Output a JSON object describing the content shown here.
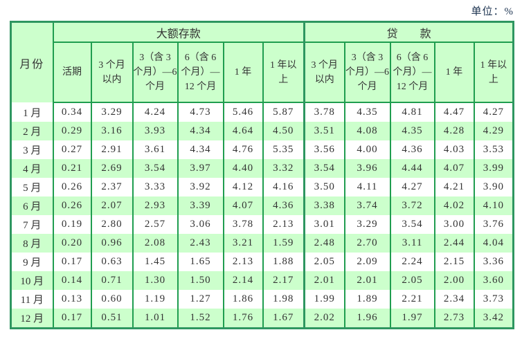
{
  "unit_label": "单位：%",
  "colors": {
    "row_green": "#ccffcc",
    "row_white": "#ffffff",
    "border_thick": "#2e9660",
    "border_thin": "#1f9d4f",
    "text": "#333333",
    "unit_text": "#1c3350"
  },
  "chart_data": {
    "type": "table",
    "unit_label": "单位：%",
    "corner_header": "月份",
    "column_groups": [
      {
        "label": "大额存款",
        "span": 6
      },
      {
        "label": "贷　　款",
        "span": 5
      }
    ],
    "columns": [
      "活期",
      "3 个月\n以内",
      "3（含 3\n个月）—6\n个月",
      "6（含 6\n个月）—\n12 个月",
      "1 年",
      "1 年以\n上",
      "3 个月\n以内",
      "3（含 3\n个月）—6\n个月",
      "6（含 6\n个月）—\n12 个月",
      "1 年",
      "1 年以\n上"
    ],
    "rows": [
      {
        "month": "1 月",
        "values": [
          0.34,
          3.29,
          4.24,
          4.73,
          5.46,
          5.87,
          3.78,
          4.35,
          4.81,
          4.47,
          4.27
        ]
      },
      {
        "month": "2 月",
        "values": [
          0.29,
          3.16,
          3.93,
          4.34,
          4.64,
          4.5,
          3.51,
          4.08,
          4.35,
          4.28,
          4.29
        ]
      },
      {
        "month": "3 月",
        "values": [
          0.27,
          2.91,
          3.61,
          4.34,
          4.76,
          5.35,
          3.56,
          4.0,
          4.36,
          4.03,
          3.53
        ]
      },
      {
        "month": "4 月",
        "values": [
          0.21,
          2.69,
          3.54,
          3.97,
          4.4,
          3.32,
          3.54,
          3.96,
          4.44,
          4.07,
          3.99
        ]
      },
      {
        "month": "5 月",
        "values": [
          0.26,
          2.37,
          3.33,
          3.92,
          4.12,
          4.16,
          3.5,
          4.11,
          4.27,
          4.21,
          3.9
        ]
      },
      {
        "month": "6 月",
        "values": [
          0.26,
          2.07,
          2.93,
          3.39,
          4.07,
          4.36,
          3.38,
          3.74,
          3.72,
          4.02,
          4.1
        ]
      },
      {
        "month": "7 月",
        "values": [
          0.19,
          2.8,
          2.57,
          3.06,
          3.78,
          2.13,
          3.01,
          3.29,
          3.54,
          3.0,
          3.76
        ]
      },
      {
        "month": "8 月",
        "values": [
          0.2,
          0.96,
          2.08,
          2.43,
          3.21,
          1.59,
          2.48,
          2.7,
          3.11,
          2.44,
          4.04
        ]
      },
      {
        "month": "9 月",
        "values": [
          0.17,
          0.63,
          1.45,
          1.65,
          2.13,
          1.88,
          2.05,
          2.09,
          2.24,
          2.15,
          3.36
        ]
      },
      {
        "month": "10 月",
        "values": [
          0.14,
          0.71,
          1.3,
          1.5,
          2.14,
          2.17,
          2.01,
          2.01,
          2.05,
          2.0,
          3.6
        ]
      },
      {
        "month": "11 月",
        "values": [
          0.13,
          0.6,
          1.19,
          1.27,
          1.86,
          1.98,
          1.99,
          1.89,
          2.21,
          2.34,
          3.73
        ]
      },
      {
        "month": "12 月",
        "values": [
          0.17,
          0.51,
          1.01,
          1.52,
          1.76,
          1.67,
          2.02,
          1.96,
          1.97,
          2.73,
          3.42
        ]
      }
    ]
  }
}
